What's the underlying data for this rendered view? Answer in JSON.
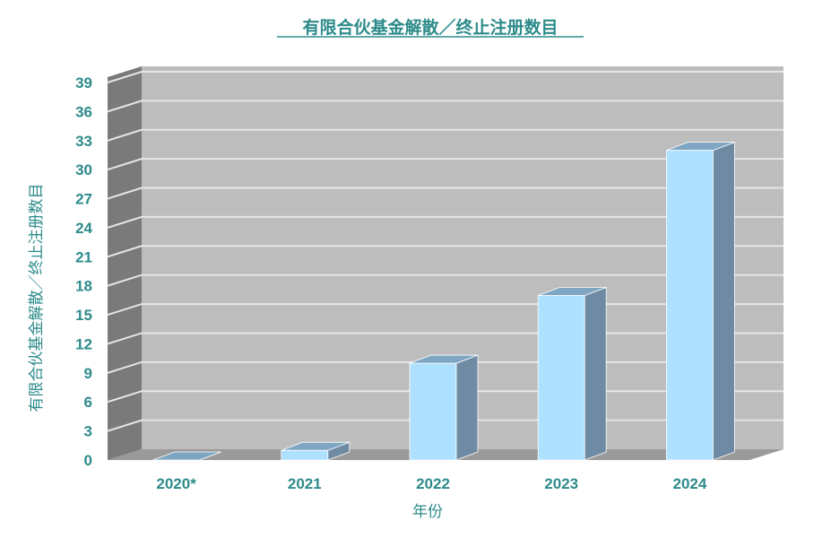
{
  "chart_data": {
    "type": "bar",
    "title": "有限合伙基金解散／终止注册数目",
    "xlabel": "年份",
    "ylabel": "有限合伙基金解散／终止注册数目",
    "categories": [
      "2020*",
      "2021",
      "2022",
      "2023",
      "2024"
    ],
    "values": [
      0,
      1,
      10,
      17,
      32
    ],
    "ylim": [
      0,
      39
    ],
    "yticks": [
      "0",
      "3",
      "6",
      "9",
      "12",
      "15",
      "18",
      "21",
      "24",
      "27",
      "30",
      "33",
      "36",
      "39"
    ],
    "grid": true,
    "legend": "none",
    "three_d": true
  },
  "colors": {
    "text": "#2e8b8b",
    "bar_front": "#aee0ff",
    "bar_side": "#6f8ba3",
    "bar_top": "#7ea6c2",
    "wall": "#bdbdbd",
    "side_wall": "#7a7a7a",
    "floor": "#9a9a9a",
    "grid": "#e6e6e6"
  }
}
